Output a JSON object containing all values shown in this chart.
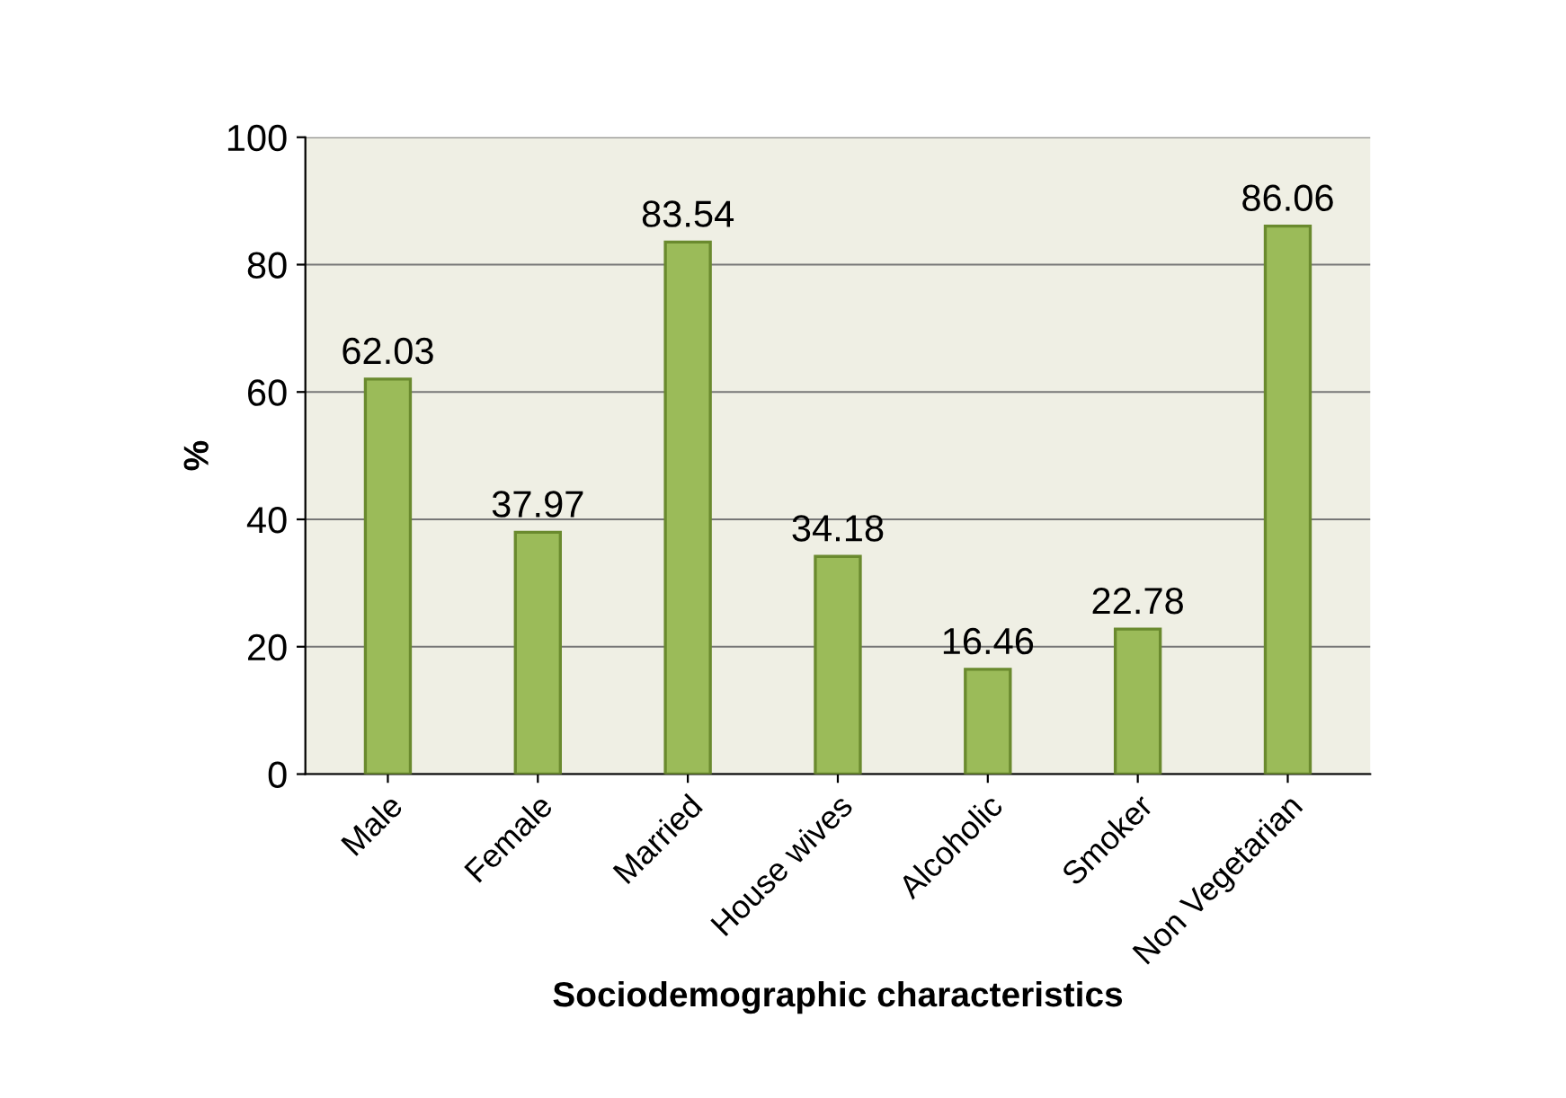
{
  "chart_data": {
    "type": "bar",
    "xlabel": "Sociodemographic characteristics",
    "ylabel": "%",
    "categories": [
      "Male",
      "Female",
      "Married",
      "House wives",
      "Alcoholic",
      "Smoker",
      "Non Vegetarian"
    ],
    "values": [
      62.03,
      37.97,
      83.54,
      34.18,
      16.46,
      22.78,
      86.06
    ],
    "color": "#9bbb59",
    "ylim": [
      0,
      100
    ],
    "yticks": [
      0,
      20,
      40,
      60,
      80,
      100
    ],
    "grid": "y",
    "data_labels": true
  }
}
